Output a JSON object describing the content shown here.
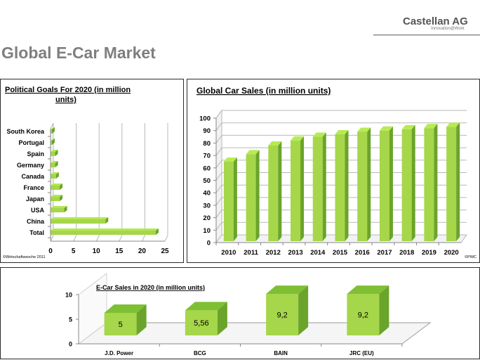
{
  "header": {
    "company": "Castellan AG",
    "tagline": "Innovation@Work"
  },
  "page_title": "Global E-Car Market",
  "colors": {
    "bar_light": "#a6d64a",
    "bar_dark": "#6aa42a",
    "grid": "#b8b8b8",
    "title_gray": "#7f7f7f"
  },
  "chart_data": [
    {
      "type": "bar",
      "orientation": "horizontal",
      "title": "Political Goals For 2020 (in million units)",
      "categories": [
        "Total",
        "China",
        "USA",
        "Japan",
        "France",
        "Canada",
        "Germany",
        "Spain",
        "Portugal",
        "South Korea"
      ],
      "values": [
        23,
        12,
        3,
        2,
        2,
        1.2,
        1,
        1,
        0.3,
        0.3
      ],
      "xlim": [
        0,
        25
      ],
      "xticks": [
        0,
        5,
        10,
        15,
        20,
        25
      ],
      "grid": true,
      "source": "©Wirtschaftswoche 2011"
    },
    {
      "type": "bar",
      "title": "Global Car Sales (in million units)",
      "categories": [
        "2010",
        "2011",
        "2012",
        "2013",
        "2014",
        "2015",
        "2016",
        "2017",
        "2018",
        "2019",
        "2020"
      ],
      "values": [
        65,
        71,
        78,
        82,
        85,
        87,
        89,
        90,
        91,
        92,
        93
      ],
      "ylim": [
        0,
        100
      ],
      "yticks": [
        0,
        10,
        20,
        30,
        40,
        50,
        60,
        70,
        80,
        90,
        100
      ],
      "grid": true,
      "source": "©PWC"
    },
    {
      "type": "bar",
      "title": "E-Car Sales in 2020 (in million units)",
      "categories": [
        "J.D. Power",
        "BCG",
        "BAIN",
        "JRC (EU)"
      ],
      "values": [
        5,
        5.56,
        9.2,
        9.2
      ],
      "labels": [
        "5",
        "5,56",
        "9,2",
        "9,2"
      ],
      "ylim": [
        0,
        10
      ],
      "yticks": [
        0,
        5,
        10
      ],
      "grid": false
    }
  ]
}
